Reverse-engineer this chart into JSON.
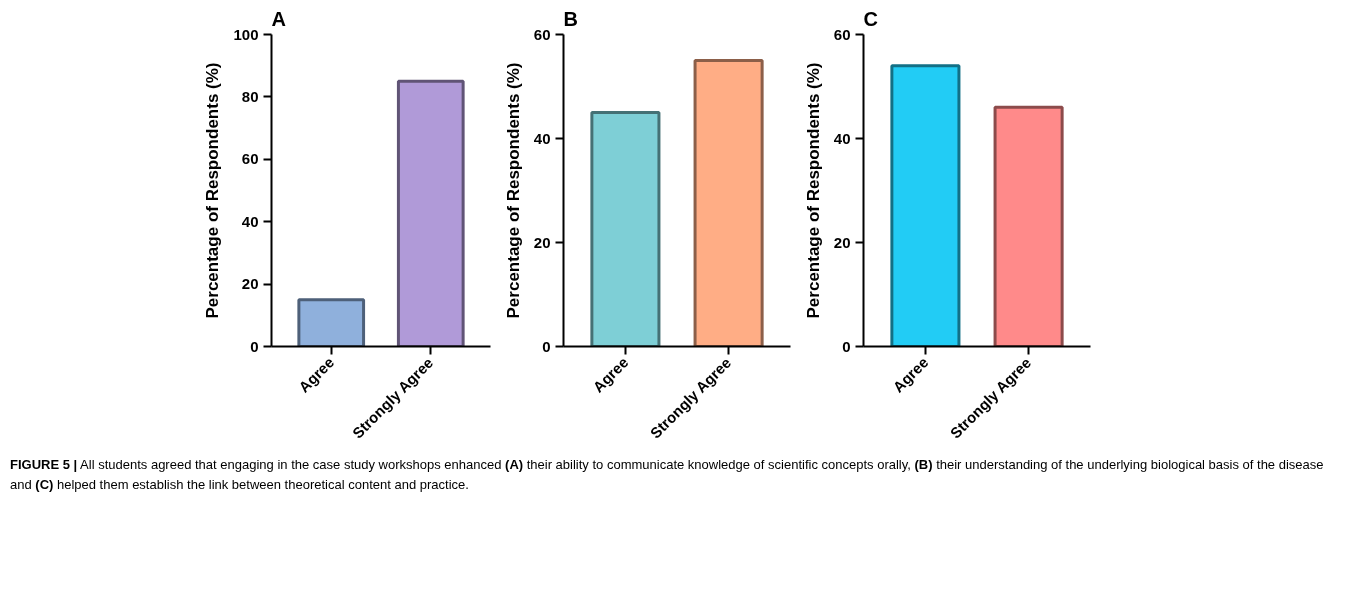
{
  "chart_data": [
    {
      "type": "bar",
      "title": "A",
      "ylabel": "Percentage of Respondents (%)",
      "categories": [
        "Agree",
        "Strongly Agree"
      ],
      "values": [
        15,
        85
      ],
      "colors": [
        "#8fb0dc",
        "#b09ad8"
      ],
      "ylim": [
        0,
        100
      ],
      "yticks": [
        0,
        20,
        40,
        60,
        80,
        100
      ],
      "grid": false
    },
    {
      "type": "bar",
      "title": "B",
      "ylabel": "Percentage of Respondents (%)",
      "categories": [
        "Agree",
        "Strongly Agree"
      ],
      "values": [
        45,
        55
      ],
      "colors": [
        "#7ecfd6",
        "#ffad85"
      ],
      "ylim": [
        0,
        60
      ],
      "yticks": [
        0,
        20,
        40,
        60
      ],
      "grid": false
    },
    {
      "type": "bar",
      "title": "C",
      "ylabel": "Percentage of Respondents (%)",
      "categories": [
        "Agree",
        "Strongly Agree"
      ],
      "values": [
        54,
        46
      ],
      "colors": [
        "#22ccf5",
        "#ff8a8a"
      ],
      "ylim": [
        0,
        60
      ],
      "yticks": [
        0,
        20,
        40,
        60
      ],
      "grid": false,
      "annotations": [
        "FIGURE 5 | All students agreed that engaging in the case study workshops enhanced (A) their ability to communicate knowledge of scientific concepts orally, (B) their understanding of the underlying biological basis of the disease and (C) helped them establish the link between theoretical content and practice."
      ]
    }
  ]
}
